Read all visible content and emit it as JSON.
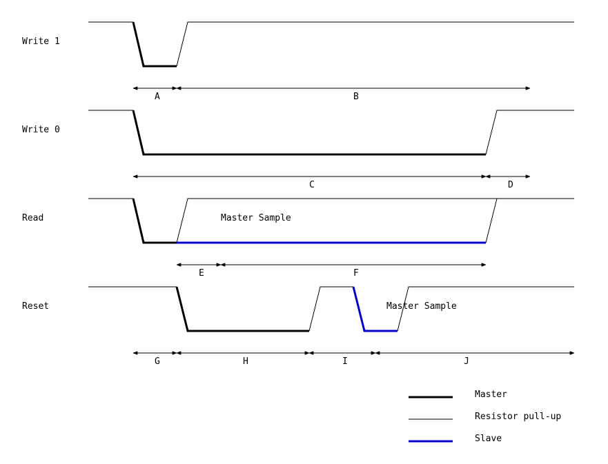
{
  "signals": {
    "write1": "Write 1",
    "write0": "Write 0",
    "read": "Read",
    "reset": "Reset"
  },
  "annotations": {
    "read_master_sample": "Master Sample",
    "reset_master_sample": "Master Sample"
  },
  "intervals": {
    "A": "A",
    "B": "B",
    "C": "C",
    "D": "D",
    "E": "E",
    "F": "F",
    "G": "G",
    "H": "H",
    "I": "I",
    "J": "J"
  },
  "legend": {
    "master": "Master",
    "pullup": "Resistor pull-up",
    "slave": "Slave"
  },
  "colors": {
    "master": "#000000",
    "pullup": "#000000",
    "slave": "#0000cc"
  }
}
